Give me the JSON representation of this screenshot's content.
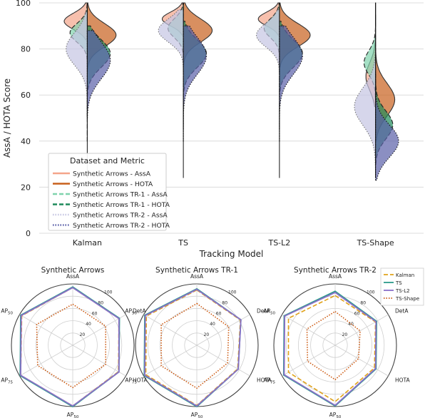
{
  "chart_data": [
    {
      "type": "violin",
      "ylabel": "AssA / HOTA Score",
      "xlabel": "Tracking Model",
      "ylim": [
        0,
        100
      ],
      "yticks": [
        0,
        20,
        40,
        60,
        80,
        100
      ],
      "categories": [
        "Kalman",
        "TS",
        "TS-L2",
        "TS-Shape"
      ],
      "grid": true,
      "legend": {
        "title": "Dataset and Metric",
        "placement": "lower-left",
        "entries": [
          {
            "label": "Synthetic Arrows - AssA",
            "color": "#f4a58a",
            "dash": "solid"
          },
          {
            "label": "Synthetic Arrows - HOTA",
            "color": "#c8601c",
            "dash": "solid"
          },
          {
            "label": "Synthetic Arrows TR-1 - AssA",
            "color": "#7fd3ad",
            "dash": "dashed"
          },
          {
            "label": "Synthetic Arrows TR-1 - HOTA",
            "color": "#1e8a5a",
            "dash": "dashed"
          },
          {
            "label": "Synthetic Arrows TR-2 - AssA",
            "color": "#c4c4e2",
            "dash": "dotted"
          },
          {
            "label": "Synthetic Arrows TR-2 - HOTA",
            "color": "#5a5fa8",
            "dash": "dotted"
          }
        ]
      },
      "series": [
        {
          "name": "Synthetic Arrows - AssA",
          "side": "left",
          "fill": "#f4a58a",
          "stroke": "#333333",
          "dash": "solid",
          "values": [
            {
              "mode": 92,
              "spread": 3.5,
              "min": 84,
              "max": 100,
              "peak": 0.6
            },
            {
              "mode": 93,
              "spread": 3,
              "min": 86,
              "max": 100,
              "peak": 0.55
            },
            {
              "mode": 93,
              "spread": 3,
              "min": 86,
              "max": 100,
              "peak": 0.55
            },
            {
              "mode": 68,
              "spread": 6,
              "min": 55,
              "max": 100,
              "peak": 0.25
            }
          ]
        },
        {
          "name": "Synthetic Arrows - HOTA",
          "side": "right",
          "fill": "#c8601c",
          "stroke": "#333333",
          "dash": "solid",
          "values": [
            {
              "mode": 86,
              "spread": 5,
              "min": 70,
              "max": 100,
              "peak": 0.75
            },
            {
              "mode": 88,
              "spread": 5,
              "min": 72,
              "max": 100,
              "peak": 0.75
            },
            {
              "mode": 86,
              "spread": 5,
              "min": 72,
              "max": 100,
              "peak": 0.8
            },
            {
              "mode": 58,
              "spread": 7,
              "min": 40,
              "max": 100,
              "peak": 0.5
            }
          ]
        },
        {
          "name": "Synthetic Arrows TR-1 - AssA",
          "side": "left",
          "fill": "#7fd3ad",
          "stroke": "#222222",
          "dash": "dashed",
          "values": [
            {
              "mode": 87,
              "spread": 4,
              "min": 50,
              "max": 100,
              "peak": 0.45
            },
            {
              "mode": 89,
              "spread": 4,
              "min": 70,
              "max": 100,
              "peak": 0.4
            },
            {
              "mode": 89,
              "spread": 4,
              "min": 70,
              "max": 100,
              "peak": 0.4
            },
            {
              "mode": 74,
              "spread": 5,
              "min": 45,
              "max": 95,
              "peak": 0.3
            }
          ]
        },
        {
          "name": "Synthetic Arrows TR-1 - HOTA",
          "side": "right",
          "fill": "#1e8a5a",
          "stroke": "#222222",
          "dash": "dashed",
          "values": [
            {
              "mode": 78,
              "spread": 6,
              "min": 40,
              "max": 90,
              "peak": 0.6
            },
            {
              "mode": 78,
              "spread": 6,
              "min": 45,
              "max": 92,
              "peak": 0.6
            },
            {
              "mode": 78,
              "spread": 6,
              "min": 45,
              "max": 92,
              "peak": 0.6
            },
            {
              "mode": 47,
              "spread": 6,
              "min": 30,
              "max": 80,
              "peak": 0.45
            }
          ]
        },
        {
          "name": "Synthetic Arrows TR-2 - AssA",
          "side": "left",
          "fill": "#c4c4e2",
          "stroke": "#777777",
          "dash": "dotted",
          "values": [
            {
              "mode": 80,
              "spread": 7,
              "min": 40,
              "max": 96,
              "peak": 0.55
            },
            {
              "mode": 88,
              "spread": 5,
              "min": 60,
              "max": 97,
              "peak": 0.65
            },
            {
              "mode": 86,
              "spread": 5,
              "min": 60,
              "max": 97,
              "peak": 0.6
            },
            {
              "mode": 55,
              "spread": 8,
              "min": 24,
              "max": 90,
              "peak": 0.55
            }
          ]
        },
        {
          "name": "Synthetic Arrows TR-2 - HOTA",
          "side": "right",
          "fill": "#5a5fa8",
          "stroke": "#111111",
          "dash": "dotted",
          "values": [
            {
              "mode": 75,
              "spread": 8,
              "min": 50,
              "max": 88,
              "peak": 0.6
            },
            {
              "mode": 77,
              "spread": 8,
              "min": 40,
              "max": 90,
              "peak": 0.6
            },
            {
              "mode": 77,
              "spread": 8,
              "min": 40,
              "max": 90,
              "peak": 0.6
            },
            {
              "mode": 40,
              "spread": 7,
              "min": 23,
              "max": 70,
              "peak": 0.6
            }
          ]
        }
      ]
    },
    {
      "type": "radar",
      "title": "Synthetic Arrows",
      "axes": [
        "AssA",
        "DetA",
        "HOTA",
        "AP50",
        "AP75",
        "AP50"
      ],
      "axis_labels": [
        {
          "base": "AssA",
          "sub": ""
        },
        {
          "base": "DetA",
          "sub": ""
        },
        {
          "base": "HOTA",
          "sub": ""
        },
        {
          "base": "AP",
          "sub": "50"
        },
        {
          "base": "AP",
          "sub": "75"
        },
        {
          "base": "AP",
          "sub": "50"
        }
      ],
      "rlim": [
        0,
        100
      ],
      "rticks": [
        "20",
        "40",
        "60",
        "80",
        "100"
      ],
      "series": [
        {
          "name": "Kalman",
          "color": "#e0a21a",
          "dash": "dashed",
          "values": [
            94,
            87,
            86,
            99,
            98,
            96
          ]
        },
        {
          "name": "TS",
          "color": "#2a9a8a",
          "dash": "solid",
          "values": [
            95,
            88,
            87,
            100,
            99,
            98
          ]
        },
        {
          "name": "TS-L2",
          "color": "#8a70c8",
          "dash": "solid",
          "values": [
            94,
            87,
            87,
            99,
            98,
            97
          ]
        },
        {
          "name": "TS-Shape",
          "color": "#cc5a12",
          "dash": "dotted",
          "values": [
            67,
            62,
            62,
            69,
            66,
            68
          ]
        }
      ]
    },
    {
      "type": "radar",
      "title": "Synthetic Arrows TR-1",
      "axes": [
        "AssA",
        "DetA",
        "HOTA",
        "AP50",
        "AP75",
        "AP50"
      ],
      "axis_labels": [
        {
          "base": "AssA",
          "sub": ""
        },
        {
          "base": "DetA",
          "sub": ""
        },
        {
          "base": "HOTA",
          "sub": ""
        },
        {
          "base": "AP",
          "sub": "50"
        },
        {
          "base": "AP",
          "sub": "75"
        },
        {
          "base": "AP",
          "sub": "50"
        }
      ],
      "rlim": [
        0,
        100
      ],
      "rticks": [
        "20",
        "40",
        "60",
        "80",
        "100"
      ],
      "series": [
        {
          "name": "Kalman",
          "color": "#e0a21a",
          "dash": "dashed",
          "values": [
            90,
            82,
            77,
            98,
            96,
            95
          ]
        },
        {
          "name": "TS",
          "color": "#2a9a8a",
          "dash": "solid",
          "values": [
            92,
            83,
            78,
            100,
            99,
            98
          ]
        },
        {
          "name": "TS-L2",
          "color": "#8a70c8",
          "dash": "solid",
          "values": [
            91,
            83,
            78,
            99,
            98,
            97
          ]
        },
        {
          "name": "TS-Shape",
          "color": "#cc5a12",
          "dash": "dotted",
          "values": [
            68,
            60,
            58,
            70,
            67,
            67
          ]
        }
      ]
    },
    {
      "type": "radar",
      "title": "Synthetic Arrows TR-2",
      "axes": [
        "AssA",
        "DetA",
        "HOTA",
        "AP50",
        "AP75",
        "AP50"
      ],
      "axis_labels": [
        {
          "base": "AssA",
          "sub": ""
        },
        {
          "base": "DetA",
          "sub": ""
        },
        {
          "base": "HOTA",
          "sub": ""
        },
        {
          "base": "AP",
          "sub": "50"
        },
        {
          "base": "AP",
          "sub": "75"
        },
        {
          "base": "AP",
          "sub": "50"
        }
      ],
      "rlim": [
        0,
        100
      ],
      "rticks": [
        "20",
        "40",
        "60",
        "80",
        "100"
      ],
      "legend": {
        "placement": "top-right",
        "entries": [
          "Kalman",
          "TS",
          "TS-L2",
          "TS-Shape"
        ]
      },
      "series": [
        {
          "name": "Kalman",
          "color": "#e0a21a",
          "dash": "dashed",
          "values": [
            81,
            76,
            74,
            92,
            88,
            88
          ]
        },
        {
          "name": "TS",
          "color": "#2a9a8a",
          "dash": "solid",
          "values": [
            88,
            78,
            77,
            99,
            97,
            96
          ]
        },
        {
          "name": "TS-L2",
          "color": "#8a70c8",
          "dash": "solid",
          "values": [
            86,
            77,
            76,
            98,
            96,
            95
          ]
        },
        {
          "name": "TS-Shape",
          "color": "#cc5a12",
          "dash": "dotted",
          "values": [
            55,
            47,
            44,
            56,
            52,
            53
          ]
        }
      ]
    }
  ]
}
